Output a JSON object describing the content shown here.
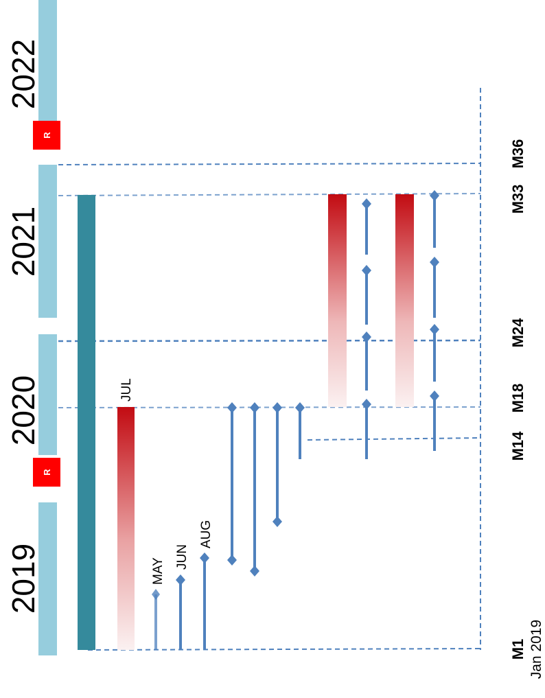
{
  "timeline": {
    "years": [
      "2019",
      "2020",
      "2021",
      "2022"
    ],
    "review_marker": "R",
    "milestones": [
      "M1",
      "M14",
      "M18",
      "M24",
      "M33",
      "M36"
    ],
    "start_date": "Jan 2019",
    "month_labels": [
      "MAY",
      "JUN",
      "AUG",
      "JUL"
    ]
  },
  "colors": {
    "year_band": "#96cddd",
    "main_bar": "#358a9c",
    "gradient_dark": "#c20b12",
    "gradient_light": "#faf0f0",
    "connector": "#4f81bd",
    "review_badge": "#ff0000"
  }
}
